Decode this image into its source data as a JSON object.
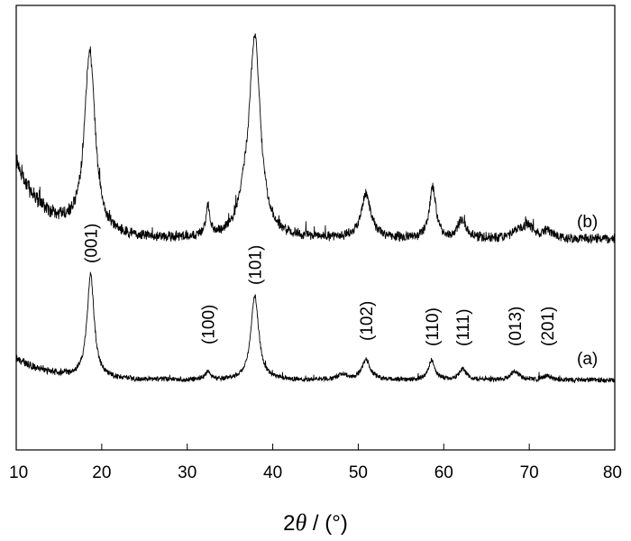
{
  "chart_data": {
    "type": "line",
    "title": "",
    "xlabel": "2θ / (°)",
    "xlabel_parts": {
      "prefix": "2",
      "symbol": "θ",
      "suffix": " / (°)"
    },
    "ylabel": "",
    "xlim": [
      10,
      80
    ],
    "x_ticks": [
      "10",
      "20",
      "30",
      "40",
      "50",
      "60",
      "70",
      "80"
    ],
    "grid": false,
    "y_tick_labels": false,
    "series": [
      {
        "name": "(b)",
        "baseline": 0.08,
        "noise": 0.022,
        "peaks": [
          {
            "x": 18.6,
            "height": 0.92,
            "width": 0.75
          },
          {
            "x": 32.4,
            "height": 0.16,
            "width": 0.25
          },
          {
            "x": 37.9,
            "height": 1.0,
            "width": 0.8
          },
          {
            "x": 36.6,
            "height": 0.1,
            "width": 0.7
          },
          {
            "x": 50.9,
            "height": 0.22,
            "width": 0.7
          },
          {
            "x": 58.7,
            "height": 0.26,
            "width": 0.45
          },
          {
            "x": 62.1,
            "height": 0.09,
            "width": 0.6
          },
          {
            "x": 68.6,
            "height": 0.03,
            "width": 0.8
          },
          {
            "x": 69.8,
            "height": 0.06,
            "width": 0.8
          },
          {
            "x": 72.1,
            "height": 0.04,
            "width": 0.7
          }
        ],
        "low_angle_rise": {
          "amplitude": 0.38,
          "decay": 3.5
        }
      },
      {
        "name": "(a)",
        "baseline": 0.02,
        "noise": 0.02,
        "peaks": [
          {
            "x": 18.7,
            "height": 0.95,
            "width": 0.5
          },
          {
            "x": 32.4,
            "height": 0.08,
            "width": 0.3
          },
          {
            "x": 37.9,
            "height": 0.78,
            "width": 0.55
          },
          {
            "x": 48.1,
            "height": 0.05,
            "width": 0.6
          },
          {
            "x": 50.9,
            "height": 0.18,
            "width": 0.6
          },
          {
            "x": 58.6,
            "height": 0.18,
            "width": 0.45
          },
          {
            "x": 62.2,
            "height": 0.1,
            "width": 0.5
          },
          {
            "x": 68.3,
            "height": 0.08,
            "width": 0.6
          },
          {
            "x": 72.1,
            "height": 0.04,
            "width": 0.6
          }
        ],
        "low_angle_rise": {
          "amplitude": 0.2,
          "decay": 4.0
        }
      }
    ],
    "peak_labels": [
      {
        "text": "(001)",
        "x": 18.7
      },
      {
        "text": "(100)",
        "x": 32.4
      },
      {
        "text": "(101)",
        "x": 37.9
      },
      {
        "text": "(102)",
        "x": 50.9
      },
      {
        "text": "(110)",
        "x": 58.6
      },
      {
        "text": "(111)",
        "x": 62.2
      },
      {
        "text": "(013)",
        "x": 68.3
      },
      {
        "text": "(201)",
        "x": 72.1
      }
    ]
  }
}
